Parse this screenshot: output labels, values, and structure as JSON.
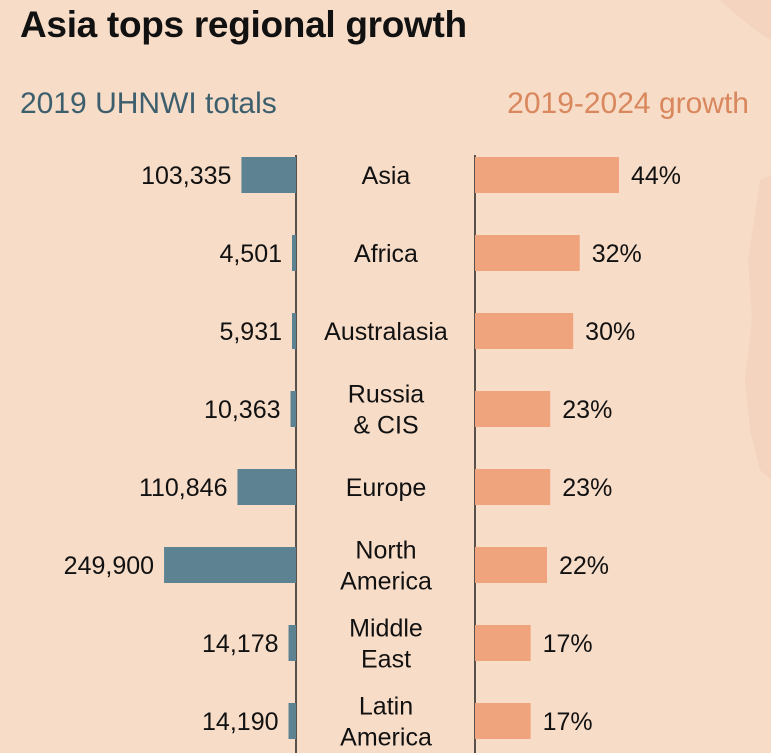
{
  "colors": {
    "background": "#f7dcc8",
    "totals_bar": "#5d8393",
    "growth_bar": "#f0a47e",
    "totals_header": "#3d5f6d",
    "growth_header": "#d9875d",
    "axis": "#222222"
  },
  "title": "Asia tops regional growth",
  "headers": {
    "totals": "2019 UHNWI totals",
    "growth": "2019-2024 growth"
  },
  "chart_data": {
    "type": "bar",
    "title": "Asia tops regional growth",
    "categories": [
      [
        "Asia"
      ],
      [
        "Africa"
      ],
      [
        "Australasia"
      ],
      [
        "Russia",
        "& CIS"
      ],
      [
        "Europe"
      ],
      [
        "North",
        "America"
      ],
      [
        "Middle",
        "East"
      ],
      [
        "Latin",
        "America"
      ]
    ],
    "series": [
      {
        "name": "2019 UHNWI totals",
        "values": [
          103335,
          4501,
          5931,
          10363,
          110846,
          249900,
          14178,
          14190
        ],
        "labels": [
          "103,335",
          "4,501",
          "5,931",
          "10,363",
          "110,846",
          "249,900",
          "14,178",
          "14,190"
        ]
      },
      {
        "name": "2019-2024 growth",
        "values": [
          44,
          32,
          30,
          23,
          23,
          22,
          17,
          17
        ],
        "labels": [
          "44%",
          "32%",
          "30%",
          "23%",
          "23%",
          "22%",
          "17%",
          "17%"
        ]
      }
    ]
  }
}
